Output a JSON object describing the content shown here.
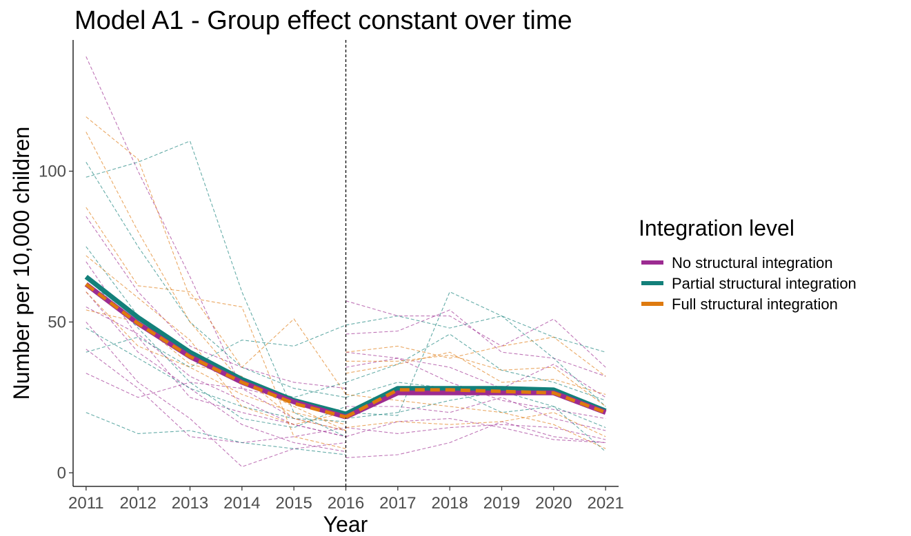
{
  "chart_data": {
    "type": "line",
    "title": "Model A1 - Group effect constant over time",
    "xlabel": "Year",
    "ylabel": "Number per 10,000 children",
    "x": [
      2011,
      2012,
      2013,
      2014,
      2015,
      2016,
      2017,
      2018,
      2019,
      2020,
      2021
    ],
    "x_tick_labels": [
      "2011",
      "2012",
      "2013",
      "2014",
      "2015",
      "2016",
      "2017",
      "2018",
      "2019",
      "2020",
      "2021"
    ],
    "y_ticks": [
      0,
      50,
      100
    ],
    "y_tick_labels": [
      "0",
      "50",
      "100"
    ],
    "xlim": [
      2010.75,
      2021.25
    ],
    "ylim": [
      -4.5,
      143.5
    ],
    "grid": false,
    "vline": {
      "x": 2016,
      "style": "dashed",
      "color": "#000000"
    },
    "legend": {
      "title": "Integration level",
      "position": "right"
    },
    "series": [
      {
        "name": "No structural integration",
        "color": "#9C2B91",
        "values": [
          62.5,
          49.5,
          38.5,
          30,
          23.5,
          18.5,
          26.5,
          26.5,
          26.5,
          26.5,
          20
        ]
      },
      {
        "name": "Partial structural integration",
        "color": "#13807A",
        "values": [
          65,
          51.5,
          40,
          31,
          24,
          19.5,
          28,
          28,
          28,
          27.5,
          20.5
        ]
      },
      {
        "name": "Full structural integration",
        "color": "#DE7A0F",
        "values": [
          62.5,
          49.5,
          38.5,
          30,
          23,
          18.5,
          27.5,
          27.5,
          27,
          26.5,
          20
        ]
      }
    ],
    "individual_series": [
      {
        "color": "#9C2B91",
        "values": [
          138,
          100,
          65,
          28,
          18,
          14,
          null,
          null,
          null,
          null,
          null
        ]
      },
      {
        "color": "#9C2B91",
        "values": [
          50,
          30,
          18,
          2,
          8,
          10,
          null,
          null,
          null,
          null,
          null
        ]
      },
      {
        "color": "#9C2B91",
        "values": [
          33,
          25,
          30,
          28,
          24,
          20,
          null,
          null,
          null,
          null,
          null
        ]
      },
      {
        "color": "#9C2B91",
        "values": [
          70,
          45,
          25,
          20,
          16,
          12,
          null,
          null,
          null,
          null,
          null
        ]
      },
      {
        "color": "#9C2B91",
        "values": [
          41,
          28,
          12,
          10,
          12,
          15,
          null,
          null,
          null,
          null,
          null
        ]
      },
      {
        "color": "#9C2B91",
        "values": [
          85,
          60,
          42,
          35,
          30,
          28,
          null,
          null,
          null,
          null,
          null
        ]
      },
      {
        "color": "#9C2B91",
        "values": [
          55,
          46,
          32,
          24,
          16,
          12,
          null,
          null,
          null,
          null,
          null
        ]
      },
      {
        "color": "#9C2B91",
        "values": [
          60,
          40,
          28,
          16,
          10,
          7,
          null,
          null,
          null,
          null,
          null
        ]
      },
      {
        "color": "#13807A",
        "values": [
          20,
          13,
          14,
          10,
          8,
          6,
          null,
          null,
          null,
          null,
          null
        ]
      },
      {
        "color": "#13807A",
        "values": [
          98,
          103,
          110,
          60,
          20,
          12,
          null,
          null,
          null,
          null,
          null
        ]
      },
      {
        "color": "#13807A",
        "values": [
          40,
          45,
          35,
          44,
          42,
          49,
          null,
          null,
          null,
          null,
          null
        ]
      },
      {
        "color": "#13807A",
        "values": [
          103,
          75,
          50,
          35,
          28,
          25,
          null,
          null,
          null,
          null,
          null
        ]
      },
      {
        "color": "#13807A",
        "values": [
          65,
          48,
          30,
          18,
          15,
          22,
          null,
          null,
          null,
          null,
          null
        ]
      },
      {
        "color": "#13807A",
        "values": [
          48,
          38,
          28,
          22,
          18,
          17,
          null,
          null,
          null,
          null,
          null
        ]
      },
      {
        "color": "#13807A",
        "values": [
          75,
          52,
          40,
          30,
          25,
          30,
          null,
          null,
          null,
          null,
          null
        ]
      },
      {
        "color": "#DE7A0F",
        "values": [
          118,
          104,
          58,
          55,
          12,
          8,
          null,
          null,
          null,
          null,
          null
        ]
      },
      {
        "color": "#DE7A0F",
        "values": [
          88,
          62,
          60,
          35,
          51,
          26,
          null,
          null,
          null,
          null,
          null
        ]
      },
      {
        "color": "#DE7A0F",
        "values": [
          113,
          80,
          50,
          30,
          22,
          14,
          null,
          null,
          null,
          null,
          null
        ]
      },
      {
        "color": "#DE7A0F",
        "values": [
          54,
          50,
          36,
          32,
          18,
          14,
          null,
          null,
          null,
          null,
          null
        ]
      },
      {
        "color": "#DE7A0F",
        "values": [
          72,
          58,
          44,
          22,
          16,
          20,
          null,
          null,
          null,
          null,
          null
        ]
      },
      {
        "color": "#DE7A0F",
        "values": [
          60,
          42,
          35,
          26,
          20,
          16,
          null,
          null,
          null,
          null,
          null
        ]
      },
      {
        "color": "#9C2B91",
        "values": [
          null,
          null,
          null,
          null,
          null,
          57,
          52,
          52,
          42,
          51,
          35
        ]
      },
      {
        "color": "#9C2B91",
        "values": [
          null,
          null,
          null,
          null,
          null,
          5,
          6,
          10,
          17,
          12,
          10
        ]
      },
      {
        "color": "#9C2B91",
        "values": [
          null,
          null,
          null,
          null,
          null,
          46,
          47,
          54,
          40,
          38,
          32
        ]
      },
      {
        "color": "#9C2B91",
        "values": [
          null,
          null,
          null,
          null,
          null,
          35,
          38,
          30,
          24,
          21,
          18
        ]
      },
      {
        "color": "#9C2B91",
        "values": [
          null,
          null,
          null,
          null,
          null,
          15,
          13,
          15,
          16,
          15,
          11
        ]
      },
      {
        "color": "#9C2B91",
        "values": [
          null,
          null,
          null,
          null,
          null,
          22,
          22,
          20,
          25,
          18,
          14
        ]
      },
      {
        "color": "#9C2B91",
        "values": [
          null,
          null,
          null,
          null,
          null,
          12,
          17,
          18,
          15,
          11,
          10
        ]
      },
      {
        "color": "#9C2B91",
        "values": [
          null,
          null,
          null,
          null,
          null,
          40,
          38,
          35,
          28,
          36,
          25
        ]
      },
      {
        "color": "#13807A",
        "values": [
          null,
          null,
          null,
          null,
          null,
          49,
          52,
          48,
          52,
          45,
          40
        ]
      },
      {
        "color": "#13807A",
        "values": [
          null,
          null,
          null,
          null,
          null,
          30,
          36,
          46,
          34,
          30,
          24
        ]
      },
      {
        "color": "#13807A",
        "values": [
          null,
          null,
          null,
          null,
          null,
          20,
          19,
          60,
          52,
          38,
          22
        ]
      },
      {
        "color": "#13807A",
        "values": [
          null,
          null,
          null,
          null,
          null,
          25,
          30,
          28,
          20,
          22,
          15
        ]
      },
      {
        "color": "#13807A",
        "values": [
          null,
          null,
          null,
          null,
          null,
          18,
          20,
          24,
          27,
          22,
          7
        ]
      },
      {
        "color": "#DE7A0F",
        "values": [
          null,
          null,
          null,
          null,
          null,
          40,
          42,
          38,
          42,
          45,
          32
        ]
      },
      {
        "color": "#DE7A0F",
        "values": [
          null,
          null,
          null,
          null,
          null,
          33,
          36,
          40,
          30,
          31,
          26
        ]
      },
      {
        "color": "#DE7A0F",
        "values": [
          null,
          null,
          null,
          null,
          null,
          26,
          24,
          22,
          20,
          16,
          8
        ]
      },
      {
        "color": "#DE7A0F",
        "values": [
          null,
          null,
          null,
          null,
          null,
          15,
          17,
          16,
          17,
          20,
          12
        ]
      },
      {
        "color": "#DE7A0F",
        "values": [
          null,
          null,
          null,
          null,
          null,
          37,
          37,
          39,
          34,
          35,
          22
        ]
      }
    ]
  }
}
